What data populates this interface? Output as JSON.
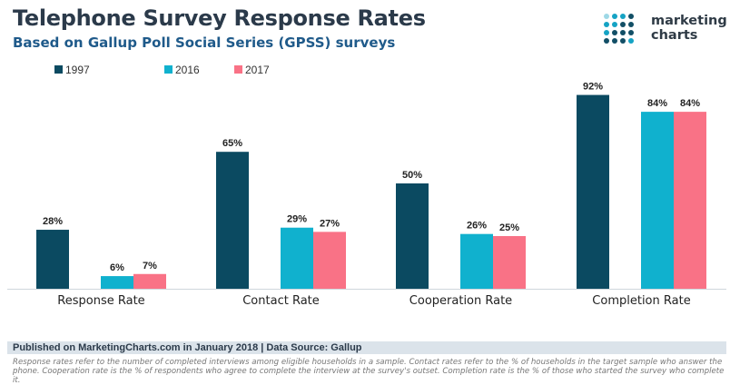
{
  "header": {
    "title": "Telephone Survey Response Rates",
    "subtitle": "Based on Gallup Poll Social Series (GPSS) surveys"
  },
  "logo": {
    "line1": "marketing",
    "line2": "charts",
    "icon": "dot-grid-logo-icon",
    "colors": [
      "#9ed8e6",
      "#15a3c4",
      "#124f66"
    ]
  },
  "chart_data": {
    "type": "bar",
    "title": "Telephone Survey Response Rates",
    "subtitle": "Based on Gallup Poll Social Series (GPSS) surveys",
    "categories": [
      "Response Rate",
      "Contact Rate",
      "Cooperation Rate",
      "Completion Rate"
    ],
    "series": [
      {
        "name": "1997",
        "color": "#0b4a61",
        "values": [
          28,
          65,
          50,
          92
        ]
      },
      {
        "name": "2016",
        "color": "#10b1ce",
        "values": [
          6,
          29,
          26,
          84
        ]
      },
      {
        "name": "2017",
        "color": "#f97286",
        "values": [
          7,
          27,
          25,
          84
        ]
      }
    ],
    "value_suffix": "%",
    "ylim": [
      0,
      100
    ],
    "xlabel": "",
    "ylabel": "",
    "grid": false,
    "legend": "top-left"
  },
  "footer": {
    "source": "Published on MarketingCharts.com in January 2018 | Data Source: Gallup",
    "notes": "Response rates refer to the number of completed interviews among eligible households in a sample. Contact rates refer to the % of households in the target sample who answer the phone. Cooperation rate is the % of respondents who agree to complete the interview at the survey's outset. Completion rate is the % of those who started the survey who complete it."
  }
}
